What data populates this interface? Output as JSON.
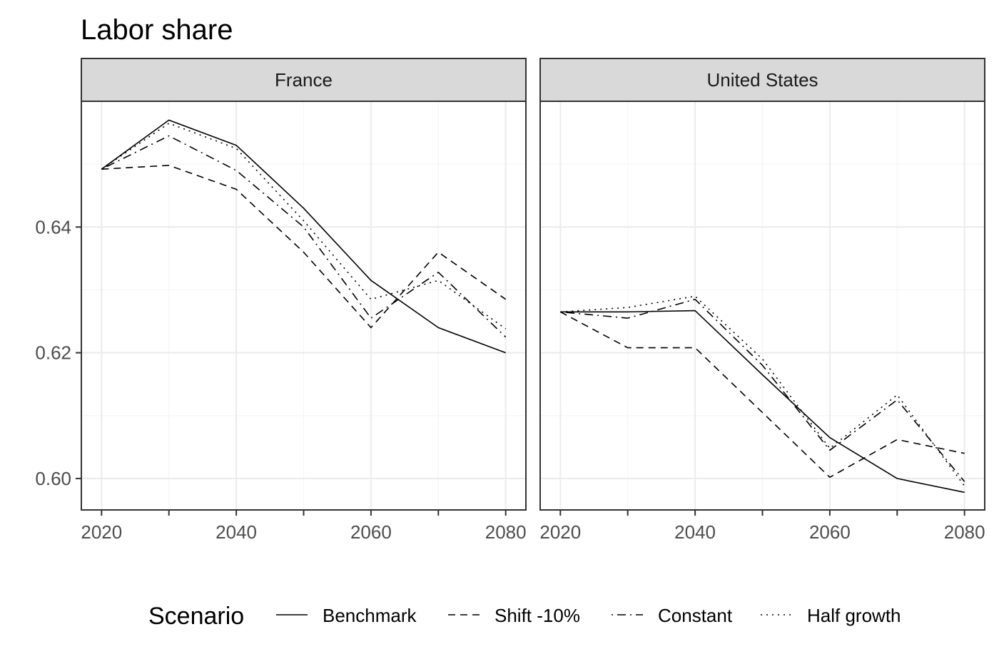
{
  "chart_data": {
    "type": "line",
    "title": "Labor share",
    "xlabel": "",
    "ylabel": "",
    "x": [
      2020,
      2030,
      2040,
      2050,
      2060,
      2070,
      2080
    ],
    "xlim": [
      2017,
      2083
    ],
    "ylim": [
      0.595,
      0.66
    ],
    "x_ticks": [
      "2020",
      "2040",
      "2060",
      "2080"
    ],
    "y_ticks": [
      "0.60",
      "0.62",
      "0.64"
    ],
    "grid": true,
    "facets": [
      {
        "name": "France",
        "series": [
          {
            "name": "Benchmark",
            "values": [
              0.6492,
              0.657,
              0.653,
              0.643,
              0.6315,
              0.624,
              0.62
            ]
          },
          {
            "name": "Shift -10%",
            "values": [
              0.6492,
              0.6498,
              0.646,
              0.636,
              0.624,
              0.636,
              0.6285
            ]
          },
          {
            "name": "Constant",
            "values": [
              0.6492,
              0.6545,
              0.649,
              0.64,
              0.6255,
              0.6328,
              0.6225
            ]
          },
          {
            "name": "Half growth",
            "values": [
              0.6492,
              0.6565,
              0.6525,
              0.641,
              0.6285,
              0.6315,
              0.6238
            ]
          }
        ]
      },
      {
        "name": "United States",
        "series": [
          {
            "name": "Benchmark",
            "values": [
              0.6265,
              0.6265,
              0.6267,
              0.6165,
              0.6065,
              0.6,
              0.5978
            ]
          },
          {
            "name": "Shift -10%",
            "values": [
              0.6265,
              0.6208,
              0.6208,
              0.6105,
              0.6002,
              0.6062,
              0.604
            ]
          },
          {
            "name": "Constant",
            "values": [
              0.6265,
              0.6255,
              0.6285,
              0.618,
              0.6045,
              0.6125,
              0.5995
            ]
          },
          {
            "name": "Half growth",
            "values": [
              0.6265,
              0.6272,
              0.629,
              0.619,
              0.6048,
              0.6133,
              0.5988
            ]
          }
        ]
      }
    ],
    "legend": {
      "title": "Scenario",
      "position": "bottom",
      "entries": [
        {
          "name": "Benchmark",
          "dash": "solid"
        },
        {
          "name": "Shift -10%",
          "dash": "dashed"
        },
        {
          "name": "Constant",
          "dash": "dotdash"
        },
        {
          "name": "Half growth",
          "dash": "dotted"
        }
      ]
    },
    "colors": {
      "line": "#000000",
      "strip_fill": "#d9d9d9",
      "panel_border": "#333333",
      "grid_major": "#ebebeb",
      "grid_minor": "#f5f5f5"
    }
  }
}
